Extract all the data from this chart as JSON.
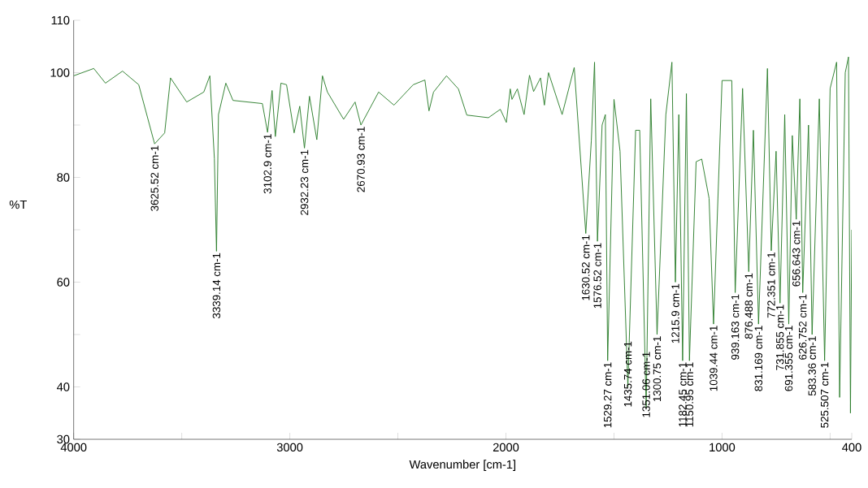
{
  "chart_data": {
    "type": "line",
    "xlabel": "Wavenumber [cm-1]",
    "ylabel": "%T",
    "color": "#2a7d2a",
    "xlim": [
      4000,
      400
    ],
    "ylim": [
      30,
      110
    ],
    "xticks": [
      4000,
      {
        "value": 3500,
        "label": null
      },
      3000,
      {
        "value": 2500,
        "label": null
      },
      2000,
      {
        "value": 1500,
        "label": null
      },
      1000,
      {
        "value": 500,
        "label": null
      },
      400
    ],
    "yticks": [
      30,
      40,
      {
        "value": 50,
        "label": null
      },
      60,
      {
        "value": 70,
        "label": null
      },
      80,
      {
        "value": 90,
        "label": null
      },
      100,
      110
    ],
    "grid": false,
    "marker": "none",
    "line_style": "solid",
    "x": [
      4000,
      3907,
      3853,
      3774,
      3699,
      3625.52,
      3579,
      3552,
      3477,
      3398,
      3370,
      3349,
      3339.14,
      3330,
      3296,
      3263,
      3127,
      3102.9,
      3082,
      3067,
      3041,
      3015,
      2980,
      2954,
      2932.23,
      2909,
      2875,
      2849,
      2826,
      2751,
      2698,
      2670.93,
      2589,
      2518,
      2429,
      2375,
      2356,
      2335,
      2275,
      2220,
      2181,
      2081,
      2026,
      1998,
      1980,
      1972,
      1947,
      1916,
      1891,
      1872,
      1840,
      1822,
      1803,
      1740,
      1684,
      1630.52,
      1605,
      1590,
      1576.52,
      1555,
      1540,
      1529.27,
      1500,
      1472,
      1435.74,
      1400,
      1381,
      1351.06,
      1330,
      1300.75,
      1260,
      1232,
      1215.9,
      1200,
      1182.45,
      1165,
      1150.95,
      1120,
      1094,
      1060,
      1039.44,
      1000,
      955,
      939.163,
      905,
      876.488,
      855,
      831.169,
      790,
      772.351,
      750,
      731.855,
      710,
      691.355,
      675,
      656.643,
      640,
      626.752,
      600,
      583.36,
      550,
      525.507,
      500,
      470,
      456,
      430,
      415,
      405.9,
      400
    ],
    "values": [
      99.4,
      100.8,
      98,
      100.3,
      97.7,
      86.4,
      88.5,
      99,
      94.4,
      96.3,
      99.4,
      83.6,
      65.9,
      92,
      98,
      94.7,
      94.1,
      88.6,
      96.6,
      87.8,
      98,
      97.7,
      88.5,
      93.6,
      85.6,
      95.5,
      87.2,
      99.4,
      96.3,
      91.1,
      94.4,
      90,
      96.3,
      93.8,
      97.7,
      98.6,
      92.7,
      96.3,
      99.4,
      96.9,
      91.9,
      91.4,
      93,
      90.5,
      96.9,
      94.9,
      96.9,
      92,
      99.5,
      96.4,
      99,
      93.8,
      100,
      92,
      101,
      69.3,
      87,
      102,
      67.8,
      90,
      92,
      45,
      94.9,
      85,
      40,
      89,
      89,
      36,
      95,
      50,
      92,
      102,
      60,
      92,
      45,
      96,
      45,
      83,
      83.5,
      76,
      52,
      98.5,
      98.5,
      58,
      97,
      62,
      89,
      52,
      100.8,
      66,
      85,
      56,
      92,
      52,
      88,
      72,
      95,
      58,
      90,
      50,
      95,
      45,
      97,
      102,
      38,
      100,
      103,
      35,
      70
    ],
    "annotations": [
      {
        "text": "3625.52 cm-1",
        "x": 3625.52,
        "y": 86.4
      },
      {
        "text": "3339.14 cm-1",
        "x": 3339.14,
        "y": 65.9
      },
      {
        "text": "3102.9 cm-1",
        "x": 3102.9,
        "y": 88.6
      },
      {
        "text": "2932.23 cm-1",
        "x": 2932.23,
        "y": 85.6
      },
      {
        "text": "2670.93 cm-1",
        "x": 2670.93,
        "y": 90
      },
      {
        "text": "1630.52 cm-1",
        "x": 1630.52,
        "y": 69.3
      },
      {
        "text": "1576.52 cm-1",
        "x": 1576.52,
        "y": 67.8
      },
      {
        "text": "1529.27 cm-1",
        "x": 1529.27,
        "y": 45
      },
      {
        "text": "1435.74 cm-1",
        "x": 1435.74,
        "y": 49
      },
      {
        "text": "1351.06 cm-1",
        "x": 1351.06,
        "y": 47
      },
      {
        "text": "1300.75 cm-1",
        "x": 1300.75,
        "y": 50
      },
      {
        "text": "1215.9 cm-1",
        "x": 1215.9,
        "y": 60
      },
      {
        "text": "1182.45 cm-1",
        "x": 1182.45,
        "y": 45
      },
      {
        "text": "1150.95 cm-1",
        "x": 1150.95,
        "y": 45
      },
      {
        "text": "1039.44 cm-1",
        "x": 1039.44,
        "y": 52
      },
      {
        "text": "939.163 cm-1",
        "x": 939.163,
        "y": 58
      },
      {
        "text": "876.488 cm-1",
        "x": 876.488,
        "y": 62
      },
      {
        "text": "831.169 cm-1",
        "x": 831.169,
        "y": 52
      },
      {
        "text": "772.351 cm-1",
        "x": 772.351,
        "y": 66
      },
      {
        "text": "731.855 cm-1",
        "x": 731.855,
        "y": 56
      },
      {
        "text": "691.355 cm-1",
        "x": 691.355,
        "y": 52
      },
      {
        "text": "656.643 cm-1",
        "x": 656.643,
        "y": 72
      },
      {
        "text": "626.752 cm-1",
        "x": 626.752,
        "y": 58
      },
      {
        "text": "583.36 cm-1",
        "x": 583.36,
        "y": 50
      },
      {
        "text": "525.507 cm-1",
        "x": 525.507,
        "y": 45
      }
    ]
  }
}
